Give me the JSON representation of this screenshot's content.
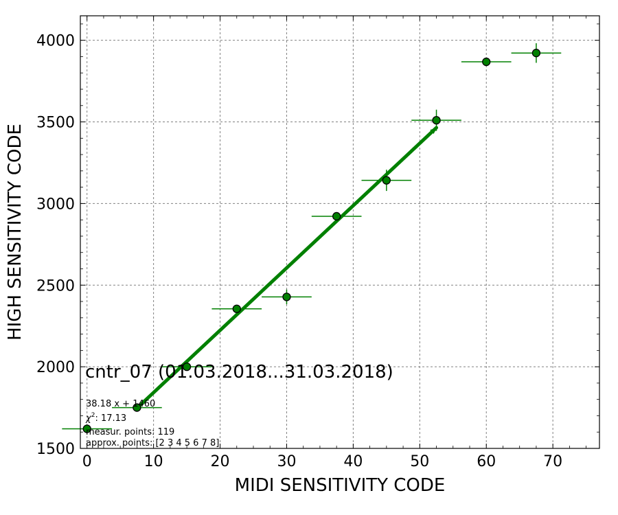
{
  "chart_data": {
    "type": "scatter",
    "xlabel": "MIDI SENSITIVITY CODE",
    "ylabel": "HIGH SENSITIVITY CODE",
    "xlim": [
      -1,
      77
    ],
    "ylim": [
      1500,
      4150
    ],
    "xticks": [
      0,
      10,
      20,
      30,
      40,
      50,
      60,
      70
    ],
    "yticks": [
      1500,
      2000,
      2500,
      3000,
      3500,
      4000
    ],
    "grid": true,
    "series": [
      {
        "points": [
          {
            "x": 0.0,
            "y": 1620,
            "xerr": 3.75,
            "yerr": 0
          },
          {
            "x": 7.5,
            "y": 1750,
            "xerr": 3.75,
            "yerr": 0
          },
          {
            "x": 15.0,
            "y": 2000,
            "xerr": 3.75,
            "yerr": 0
          },
          {
            "x": 22.5,
            "y": 2355,
            "xerr": 3.75,
            "yerr": 20
          },
          {
            "x": 30.0,
            "y": 2428,
            "xerr": 3.75,
            "yerr": 45
          },
          {
            "x": 37.5,
            "y": 2922,
            "xerr": 3.75,
            "yerr": 20
          },
          {
            "x": 45.0,
            "y": 3142,
            "xerr": 3.75,
            "yerr": 65
          },
          {
            "x": 52.5,
            "y": 3510,
            "xerr": 3.75,
            "yerr": 65
          },
          {
            "x": 60.0,
            "y": 3868,
            "xerr": 3.75,
            "yerr": 0
          },
          {
            "x": 67.5,
            "y": 3922,
            "xerr": 3.75,
            "yerr": 60
          }
        ]
      }
    ],
    "fit_line": {
      "x_start": 7.5,
      "x_end": 52.5,
      "slope": 38.18,
      "intercept": 1460
    },
    "annotations": {
      "title_text": "cntr_07 (01.03.2018...31.03.2018)",
      "fit_text": "38.18 x + 1460",
      "chi_prefix": "χ",
      "chi_sup": "2",
      "chi_value": ": 17.13",
      "measur_text": "measur. points: 119",
      "approx_text": "approx. points: [2 3 4 5 6 7 8]"
    },
    "colors": {
      "series": "#008000",
      "marker_edge": "#000000",
      "grid": "#808080"
    }
  }
}
